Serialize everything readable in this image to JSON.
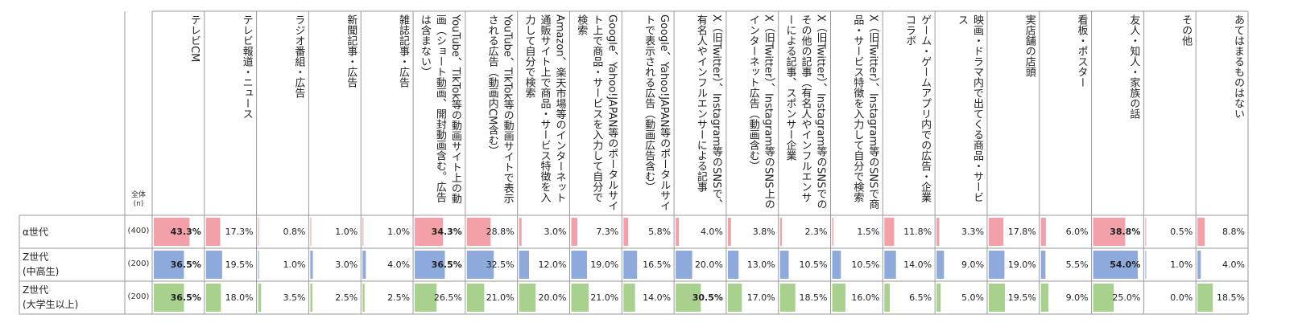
{
  "chart_data": {
    "type": "table",
    "total_header": "全体",
    "n_header": "(n)",
    "columns": [
      "テレビCM",
      "テレビ報道・ニュース",
      "ラジオ番組・広告",
      "新聞記事・広告",
      "雑誌記事・広告",
      "YouTube、TikTok等の動画サイト上の動画（ショート動画、開封動画含む。広告は含まない）",
      "YouTube、TikTok等の動画サイトで表示される広告（動画内CM含む）",
      "Amazon、楽天市場等のインターネット通販サイト上で商品・サービス特徴を入力して自分で検索",
      "Google、Yahoo!JAPAN等のポータルサイト上で商品・サービスを入力して自分で検索",
      "Google、Yahoo!JAPAN等のポータルサイトで表示される広告（動画広告含む）",
      "X（旧Twitter）、Instagram等のSNSで、有名人やインフルエンサーによる記事",
      "X（旧Twitter）、Instagram等のSNS上のインターネット広告（動画含む）",
      "X（旧Twitter）、Instagram等のSNSでのその他の記事（有名人やインフルエンサーによる記事、スポンサー企業",
      "X（旧Twitter）、Instagram等のSNSで商品・サービス特徴を入力して自分で検索",
      "ゲーム・ゲームアプリ内での広告・企業コラボ",
      "映画・ドラマ内で出てくる商品・サービス",
      "実店舗の店頭",
      "看板・ポスター",
      "友人・知人・家族の話",
      "その他",
      "あてはまるものはない"
    ],
    "series": [
      {
        "name": "α世代",
        "n": "(400)",
        "color": "#f4a0a8",
        "values": [
          43.3,
          17.3,
          0.8,
          1.0,
          1.0,
          34.3,
          28.8,
          3.0,
          7.3,
          5.8,
          4.0,
          3.8,
          2.3,
          1.5,
          11.8,
          3.3,
          17.8,
          6.0,
          38.8,
          0.5,
          8.8
        ],
        "labels": [
          "43.3%",
          "17.3%",
          "0.8%",
          "1.0%",
          "1.0%",
          "34.3%",
          "28.8%",
          "3.0%",
          "7.3%",
          "5.8%",
          "4.0%",
          "3.8%",
          "2.3%",
          "1.5%",
          "11.8%",
          "3.3%",
          "17.8%",
          "6.0%",
          "38.8%",
          "0.5%",
          "8.8%"
        ],
        "highlight": [
          true,
          false,
          false,
          false,
          false,
          true,
          false,
          false,
          false,
          false,
          false,
          false,
          false,
          false,
          false,
          false,
          false,
          false,
          true,
          false,
          false
        ]
      },
      {
        "name": "Z世代\n(中高生)",
        "n": "(200)",
        "color": "#8ea9dc",
        "values": [
          36.5,
          19.5,
          1.0,
          3.0,
          4.0,
          36.5,
          32.5,
          12.0,
          19.0,
          16.5,
          20.0,
          13.0,
          10.5,
          10.5,
          14.0,
          9.0,
          19.0,
          5.5,
          54.0,
          1.0,
          4.0
        ],
        "labels": [
          "36.5%",
          "19.5%",
          "1.0%",
          "3.0%",
          "4.0%",
          "36.5%",
          "32.5%",
          "12.0%",
          "19.0%",
          "16.5%",
          "20.0%",
          "13.0%",
          "10.5%",
          "10.5%",
          "14.0%",
          "9.0%",
          "19.0%",
          "5.5%",
          "54.0%",
          "1.0%",
          "4.0%"
        ],
        "highlight": [
          true,
          false,
          false,
          false,
          false,
          true,
          false,
          false,
          false,
          false,
          false,
          false,
          false,
          false,
          false,
          false,
          false,
          false,
          true,
          false,
          false
        ]
      },
      {
        "name": "Z世代\n(大学生以上)",
        "n": "(200)",
        "color": "#a9d18e",
        "values": [
          36.5,
          18.0,
          3.5,
          2.5,
          2.5,
          26.5,
          21.0,
          20.0,
          21.0,
          14.0,
          30.5,
          17.0,
          18.5,
          16.0,
          6.5,
          5.0,
          19.5,
          9.0,
          25.0,
          0.0,
          18.5
        ],
        "labels": [
          "36.5%",
          "18.0%",
          "3.5%",
          "2.5%",
          "2.5%",
          "26.5%",
          "21.0%",
          "20.0%",
          "21.0%",
          "14.0%",
          "30.5%",
          "17.0%",
          "18.5%",
          "16.0%",
          "6.5%",
          "5.0%",
          "19.5%",
          "9.0%",
          "25.0%",
          "0.0%",
          "18.5%"
        ],
        "highlight": [
          true,
          false,
          false,
          false,
          false,
          false,
          false,
          false,
          false,
          false,
          true,
          false,
          false,
          false,
          false,
          false,
          false,
          false,
          false,
          false,
          false
        ]
      }
    ],
    "scale_max": 60
  }
}
